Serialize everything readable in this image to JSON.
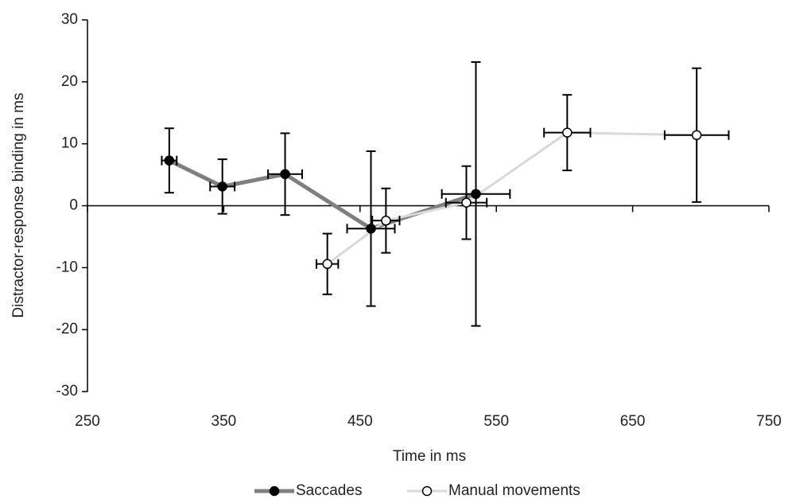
{
  "chart_data": {
    "type": "scatter",
    "x_label": "Time in ms",
    "y_label": "Distractor-response binding in ms",
    "xlim": [
      250,
      750
    ],
    "xticks": [
      250,
      350,
      450,
      550,
      650,
      750
    ],
    "ylim": [
      -30,
      30
    ],
    "yticks": [
      -30,
      -20,
      -10,
      0,
      10,
      20,
      30
    ],
    "legend": "bottom",
    "series": [
      {
        "name": "Saccades",
        "color": "#7f7f7f",
        "marker_fill": "#000000",
        "x": [
          310,
          349,
          395,
          458,
          535
        ],
        "values": [
          7.3,
          3.1,
          5.1,
          -3.7,
          1.9
        ],
        "y_errors": [
          5.2,
          4.4,
          6.6,
          12.5,
          21.3
        ],
        "x_errors": [
          5.5,
          9,
          12.5,
          17.5,
          25
        ]
      },
      {
        "name": "Manual movements",
        "color": "#d9d9d9",
        "marker_fill": "#ffffff",
        "x": [
          426,
          469,
          528,
          602,
          697
        ],
        "values": [
          -9.4,
          -2.4,
          0.5,
          11.8,
          11.4
        ],
        "y_errors": [
          4.9,
          5.2,
          5.9,
          6.1,
          10.8
        ],
        "x_errors": [
          8,
          10,
          15,
          17,
          23.5
        ]
      }
    ]
  }
}
